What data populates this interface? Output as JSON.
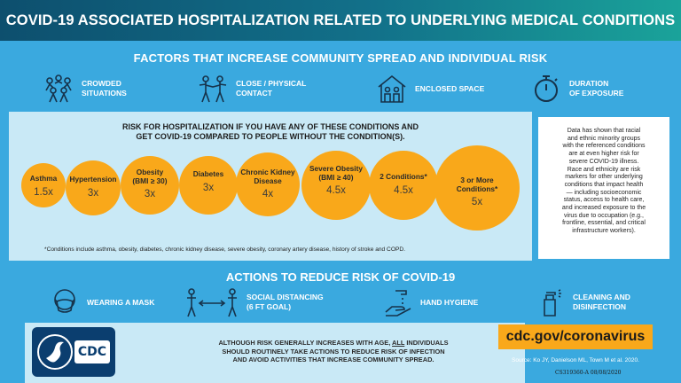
{
  "header": {
    "title": "COVID-19 ASSOCIATED HOSPITALIZATION RELATED TO UNDERLYING MEDICAL CONDITIONS"
  },
  "factors": {
    "title": "FACTORS THAT INCREASE COMMUNITY SPREAD AND INDIVIDUAL RISK",
    "items": [
      {
        "label": "CROWDED\nSITUATIONS",
        "icon": "crowd-icon"
      },
      {
        "label": "CLOSE / PHYSICAL\nCONTACT",
        "icon": "contact-icon"
      },
      {
        "label": "ENCLOSED SPACE",
        "icon": "house-icon"
      },
      {
        "label": "DURATION\nOF EXPOSURE",
        "icon": "stopwatch-icon"
      }
    ]
  },
  "risk": {
    "heading": "RISK FOR HOSPITALIZATION IF YOU HAVE ANY OF THESE CONDITIONS AND\nGET COVID-19 COMPARED TO PEOPLE WITHOUT THE CONDITION(S).",
    "conditions": [
      {
        "name": "Asthma",
        "value": "1.5x"
      },
      {
        "name": "Hypertension",
        "value": "3x"
      },
      {
        "name": "Obesity\n(BMI ≥ 30)",
        "value": "3x"
      },
      {
        "name": "Diabetes",
        "value": "3x"
      },
      {
        "name": "Chronic Kidney\nDisease",
        "value": "4x"
      },
      {
        "name": "Severe Obesity\n(BMI ≥ 40)",
        "value": "4.5x"
      },
      {
        "name": "2 Conditions*",
        "value": "4.5x"
      },
      {
        "name": "3 or More\nConditions*",
        "value": "5x"
      }
    ],
    "footnote": "*Conditions include asthma, obesity, diabetes, chronic kidney disease, severe obesity, coronary artery disease, history of stroke and COPD."
  },
  "sidebar": {
    "text": "Data has shown that racial\nand ethnic minority groups\nwith the referenced conditions\nare at even higher risk for\nsevere COVID-19 illness.\nRace and ethnicity are risk\nmarkers for other underlying\nconditions that impact health\n— including socioeconomic\nstatus, access to health care,\nand increased exposure to the\nvirus due to occupation (e.g.,\nfrontline, essential, and critical\ninfrastructure workers)."
  },
  "actions": {
    "title": "ACTIONS TO REDUCE RISK OF COVID-19",
    "items": [
      {
        "label": "WEARING A MASK",
        "icon": "mask-icon"
      },
      {
        "label": "SOCIAL DISTANCING\n(6 FT GOAL)",
        "icon": "distancing-icon"
      },
      {
        "label": "HAND HYGIENE",
        "icon": "hand-wash-icon"
      },
      {
        "label": "CLEANING AND\nDISINFECTION",
        "icon": "spray-bottle-icon"
      }
    ]
  },
  "bottom": {
    "text_before": "ALTHOUGH RISK GENERALLY INCREASES WITH AGE, ",
    "text_emph": "ALL",
    "text_after": " INDIVIDUALS\nSHOULD ROUTINELY TAKE ACTIONS TO REDUCE RISK OF INFECTION\nAND AVOID ACTIVITIES THAT INCREASE COMMUNITY SPREAD.",
    "logo_text": "CDC",
    "url": "cdc.gov/coronavirus",
    "source": "Source: Ko JY, Danielson ML, Town M et al. 2020.",
    "code": "CS319360-A 08/08/2020"
  },
  "colors": {
    "accent": "#f9a81a",
    "background": "#3aa9df",
    "panel": "#c9e9f6",
    "header_dark": "#0d4f6e",
    "header_teal": "#1aa39a"
  }
}
